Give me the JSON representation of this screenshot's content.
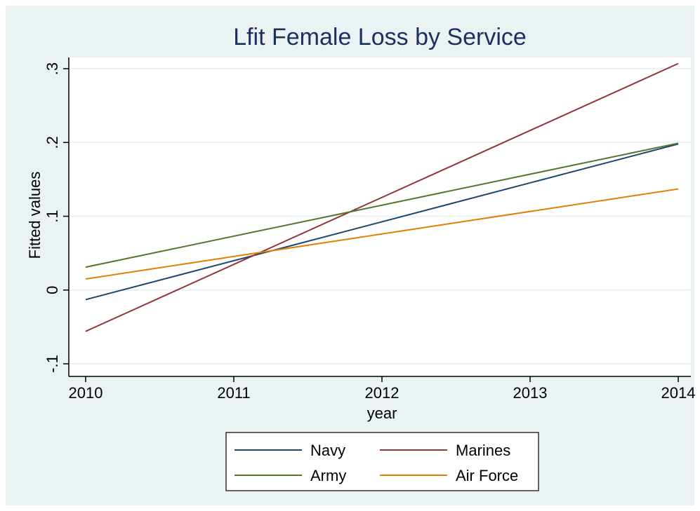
{
  "chart_data": {
    "type": "line",
    "title": "Lfit Female Loss by Service",
    "xlabel": "year",
    "ylabel": "Fitted values",
    "xlim": [
      2010,
      2014
    ],
    "ylim": [
      -0.1,
      0.3
    ],
    "xticks": [
      2010,
      2011,
      2012,
      2013,
      2014
    ],
    "xtick_labels": [
      "2010",
      "2011",
      "2012",
      "2013",
      "2014"
    ],
    "yticks": [
      -0.1,
      0,
      0.1,
      0.2,
      0.3
    ],
    "ytick_labels": [
      "-.1",
      "0",
      ".1",
      ".2",
      ".3"
    ],
    "grid": true,
    "legend_position": "bottom",
    "series": [
      {
        "name": "Navy",
        "color": "#1a476f",
        "x": [
          2010,
          2014
        ],
        "y": [
          -0.013,
          0.198
        ]
      },
      {
        "name": "Marines",
        "color": "#90353b",
        "x": [
          2010,
          2014
        ],
        "y": [
          -0.056,
          0.307
        ]
      },
      {
        "name": "Army",
        "color": "#55752f",
        "x": [
          2010,
          2014
        ],
        "y": [
          0.031,
          0.199
        ]
      },
      {
        "name": "Air Force",
        "color": "#e37e00",
        "x": [
          2010,
          2014
        ],
        "y": [
          0.015,
          0.137
        ]
      }
    ]
  }
}
